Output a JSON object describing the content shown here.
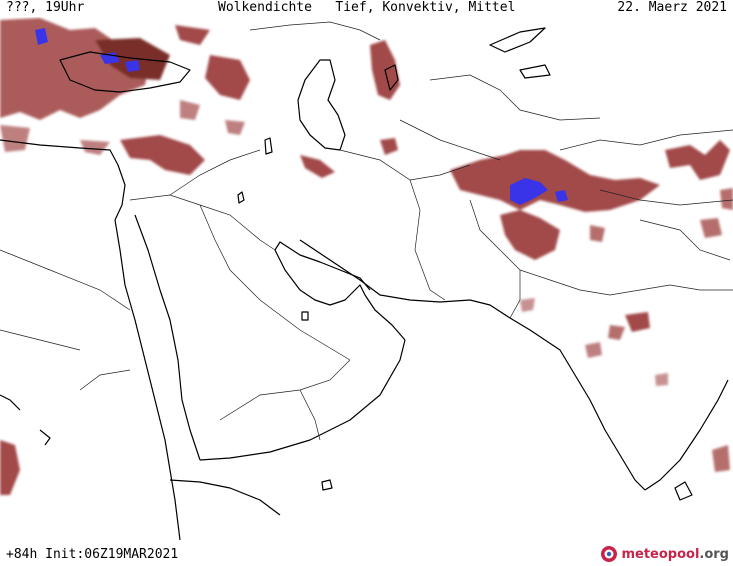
{
  "header": {
    "left": "???, 19Uhr",
    "center": "Wolkendichte   Tief, Konvektiv, Mittel",
    "right": "22. Maerz 2021"
  },
  "footer": {
    "run_info": "+84h Init:06Z19MAR2021",
    "logo_part1": "meteo",
    "logo_part2": "pool",
    "logo_part3": ".org"
  },
  "colors": {
    "cloud": "#a24a48",
    "cloud_dense": "#7a2d2c",
    "convective": "#3a34e8",
    "outline": "#000000",
    "border": "#222222",
    "logo_red": "#c8244a"
  },
  "icons": [
    "meteopool-logo-icon"
  ]
}
